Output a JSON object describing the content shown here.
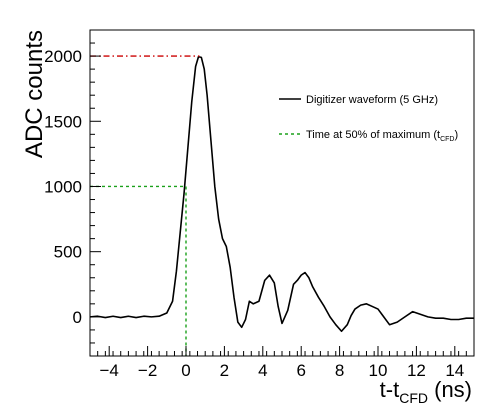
{
  "chart_data": {
    "type": "line",
    "xlabel": {
      "main": "t-t",
      "sub": "CFD",
      "unit": " (ns)"
    },
    "ylabel": "ADC counts",
    "xlim": [
      -5,
      15
    ],
    "ylim": [
      -300,
      2200
    ],
    "x_ticks": [
      -4,
      -2,
      0,
      2,
      4,
      6,
      8,
      10,
      12,
      14
    ],
    "y_ticks": [
      0,
      500,
      1000,
      1500,
      2000
    ],
    "grid": false,
    "legend_position": "top-right",
    "legend": {
      "waveform_label": "Digitizer waveform (5 GHz)",
      "cfd_label_main": "Time at 50% of maximum (t",
      "cfd_label_sub": "CFD",
      "cfd_label_close": ")"
    },
    "colors": {
      "waveform": "#000000",
      "cfd": "#1aa01a",
      "max": "#cc0000"
    },
    "series": [
      {
        "name": "Digitizer waveform (5 GHz)",
        "style": "solid",
        "x": [
          -5,
          -4.6,
          -4.2,
          -3.8,
          -3.4,
          -3.0,
          -2.6,
          -2.2,
          -1.8,
          -1.4,
          -1.0,
          -0.7,
          -0.5,
          -0.3,
          -0.1,
          0.1,
          0.3,
          0.5,
          0.65,
          0.8,
          0.95,
          1.1,
          1.3,
          1.5,
          1.7,
          1.9,
          2.1,
          2.3,
          2.5,
          2.7,
          2.9,
          3.1,
          3.3,
          3.5,
          3.8,
          4.1,
          4.35,
          4.6,
          4.8,
          5.0,
          5.3,
          5.6,
          5.8,
          6.0,
          6.2,
          6.4,
          6.6,
          6.9,
          7.2,
          7.5,
          7.8,
          8.1,
          8.4,
          8.6,
          8.8,
          9.1,
          9.4,
          9.7,
          10.0,
          10.3,
          10.6,
          11.0,
          11.4,
          11.8,
          12.2,
          12.6,
          13.0,
          13.4,
          13.8,
          14.2,
          14.6,
          15.0
        ],
        "y": [
          0,
          5,
          -5,
          5,
          -5,
          5,
          -5,
          5,
          0,
          5,
          30,
          120,
          350,
          650,
          950,
          1300,
          1650,
          1920,
          1995,
          1990,
          1900,
          1700,
          1350,
          1000,
          750,
          600,
          540,
          380,
          150,
          -40,
          -80,
          -20,
          120,
          100,
          120,
          280,
          320,
          260,
          80,
          -50,
          50,
          250,
          280,
          320,
          340,
          300,
          230,
          150,
          80,
          0,
          -60,
          -110,
          -60,
          10,
          60,
          90,
          100,
          80,
          60,
          0,
          -60,
          -40,
          0,
          40,
          20,
          0,
          -10,
          -10,
          -20,
          -20,
          -10,
          -10
        ]
      },
      {
        "name": "Time at 50% of maximum (tCFD)",
        "style": "dashed",
        "x": [
          -5,
          0,
          0
        ],
        "y": [
          1000,
          1000,
          -300
        ]
      },
      {
        "name": "maximum",
        "style": "dashdot",
        "x": [
          -5,
          0.7
        ],
        "y": [
          2000,
          2000
        ]
      }
    ]
  }
}
